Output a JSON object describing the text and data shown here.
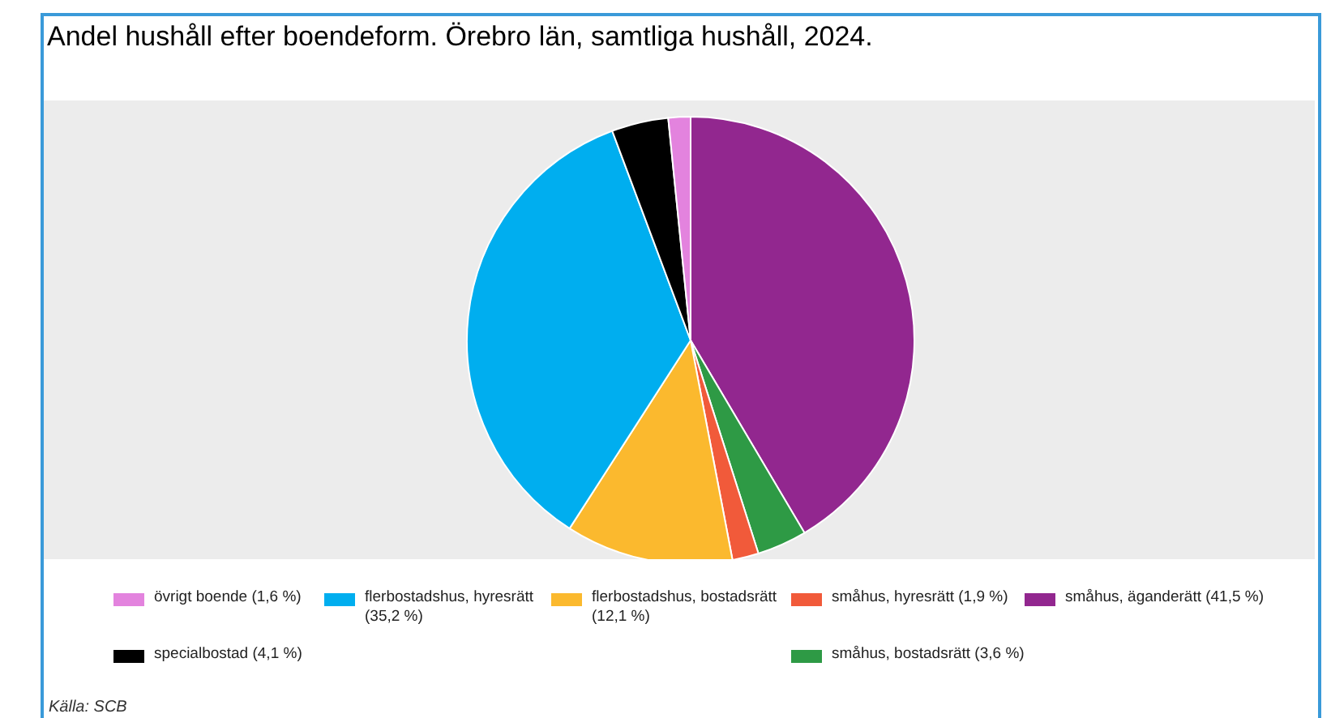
{
  "chart_data": {
    "type": "pie",
    "title": "Andel hushåll efter boendeform. Örebro län, samtliga hushåll, 2024.",
    "categories": [
      "småhus, äganderätt (41,5 %)",
      "småhus, bostadsrätt (3,6 %)",
      "småhus, hyresrätt (1,9 %)",
      "flerbostadshus, bostadsrätt (12,1 %)",
      "flerbostadshus, hyresrätt (35,2 %)",
      "specialbostad (4,1 %)",
      "övrigt boende (1,6 %)"
    ],
    "values": [
      41.5,
      3.6,
      1.9,
      12.1,
      35.2,
      4.1,
      1.6
    ],
    "colors": [
      "#92278f",
      "#2e9a45",
      "#f15a3a",
      "#fbb92e",
      "#00aeef",
      "#000000",
      "#e383de"
    ],
    "legend": "bottom",
    "annotations": [
      "Källa: SCB"
    ]
  }
}
